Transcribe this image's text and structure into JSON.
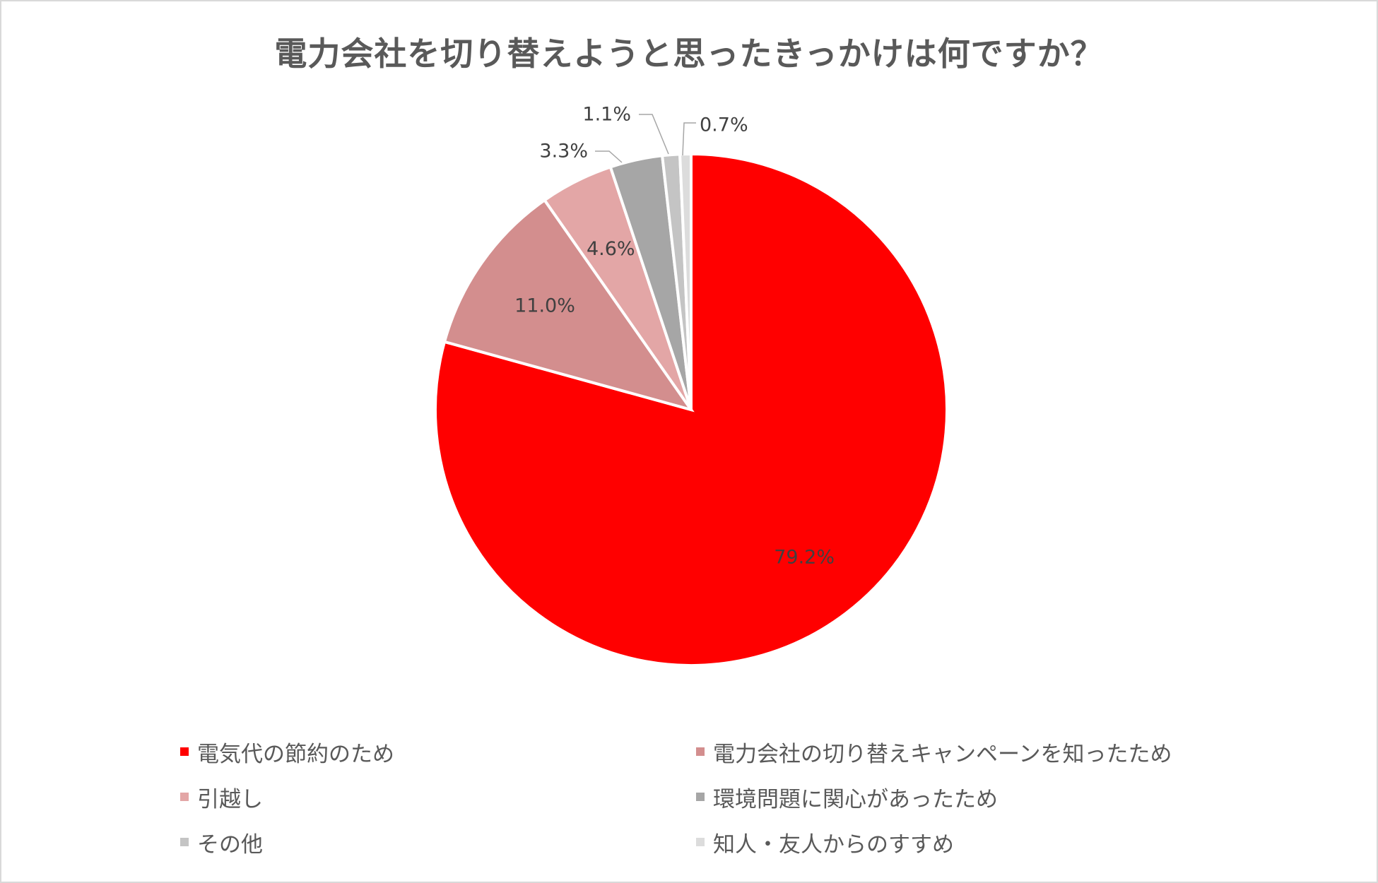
{
  "chart_data": {
    "type": "pie",
    "title": "電力会社を切り替えようと思ったきっかけは何ですか？",
    "slices": [
      {
        "label": "電気代の節約のため",
        "value": 79.2,
        "display": "79.2%",
        "color": "#ff0000"
      },
      {
        "label": "電力会社の切り替えキャンペーンを知ったため",
        "value": 11.0,
        "display": "11.0%",
        "color": "#d38e8e"
      },
      {
        "label": "引越し",
        "value": 4.6,
        "display": "4.6%",
        "color": "#e3a6a6"
      },
      {
        "label": "環境問題に関心があったため",
        "value": 3.3,
        "display": "3.3%",
        "color": "#a6a6a6"
      },
      {
        "label": "その他",
        "value": 1.1,
        "display": "1.1%",
        "color": "#c4c4c4"
      },
      {
        "label": "知人・友人からのすすめ",
        "value": 0.7,
        "display": "0.7%",
        "color": "#dcdcdc"
      }
    ],
    "legend_position": "bottom",
    "start_angle": "12 o'clock",
    "direction": "clockwise"
  }
}
